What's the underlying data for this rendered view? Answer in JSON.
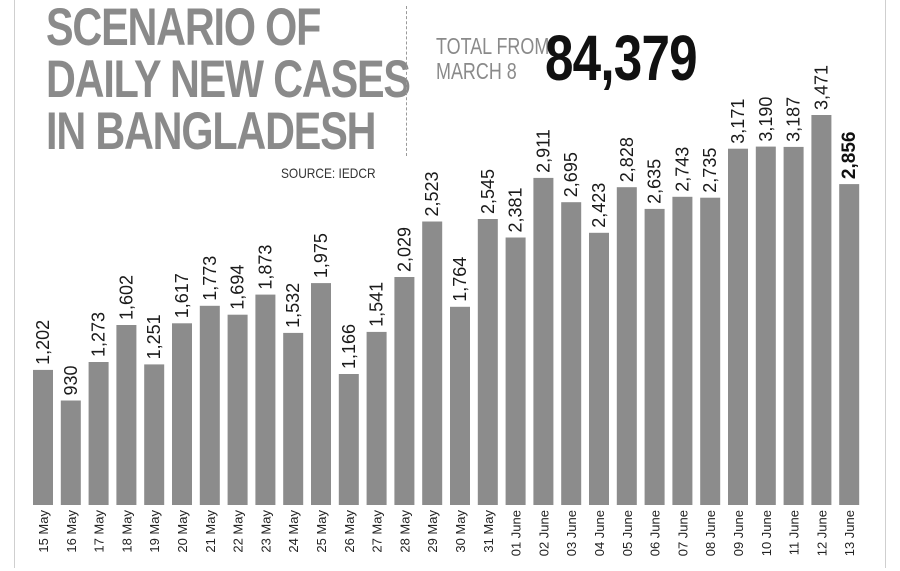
{
  "header": {
    "title_lines": [
      "SCENARIO OF",
      "DAILY NEW CASES",
      "IN BANGLADESH"
    ],
    "source": "SOURCE: IEDCR",
    "total_label_lines": [
      "TOTAL FROM",
      "MARCH 8"
    ],
    "total_value": "84,379"
  },
  "colors": {
    "bar": "#8c8c8c",
    "title": "#8a8a8a",
    "label": "#1a1a1a"
  },
  "chart_data": {
    "type": "bar",
    "title": "SCENARIO OF DAILY NEW CASES IN BANGLADESH",
    "xlabel": "",
    "ylabel": "",
    "ylim": [
      0,
      3800
    ],
    "grid": false,
    "categories": [
      "15 May",
      "16 May",
      "17 May",
      "18 May",
      "19 May",
      "20 May",
      "21 May",
      "22 May",
      "23 May",
      "24 May",
      "25 May",
      "26 May",
      "27 May",
      "28 May",
      "29 May",
      "30 May",
      "31 May",
      "01 June",
      "02 June",
      "03 June",
      "04 June",
      "05 June",
      "06 June",
      "07 June",
      "08 June",
      "09 June",
      "10 June",
      "11 June",
      "12 June",
      "13 June"
    ],
    "values": [
      1202,
      930,
      1273,
      1602,
      1251,
      1617,
      1773,
      1694,
      1873,
      1532,
      1975,
      1166,
      1541,
      2029,
      2523,
      1764,
      2545,
      2381,
      2911,
      2695,
      2423,
      2828,
      2635,
      2743,
      2735,
      3171,
      3190,
      3187,
      3471,
      2856
    ],
    "value_labels": [
      "1,202",
      "930",
      "1,273",
      "1,602",
      "1,251",
      "1,617",
      "1,773",
      "1,694",
      "1,873",
      "1,532",
      "1,975",
      "1,166",
      "1,541",
      "2,029",
      "2,523",
      "1,764",
      "2,545",
      "2,381",
      "2,911",
      "2,695",
      "2,423",
      "2,828",
      "2,635",
      "2,743",
      "2,735",
      "3,171",
      "3,190",
      "3,187",
      "3,471",
      "2,856"
    ],
    "highlight_index": 29
  }
}
